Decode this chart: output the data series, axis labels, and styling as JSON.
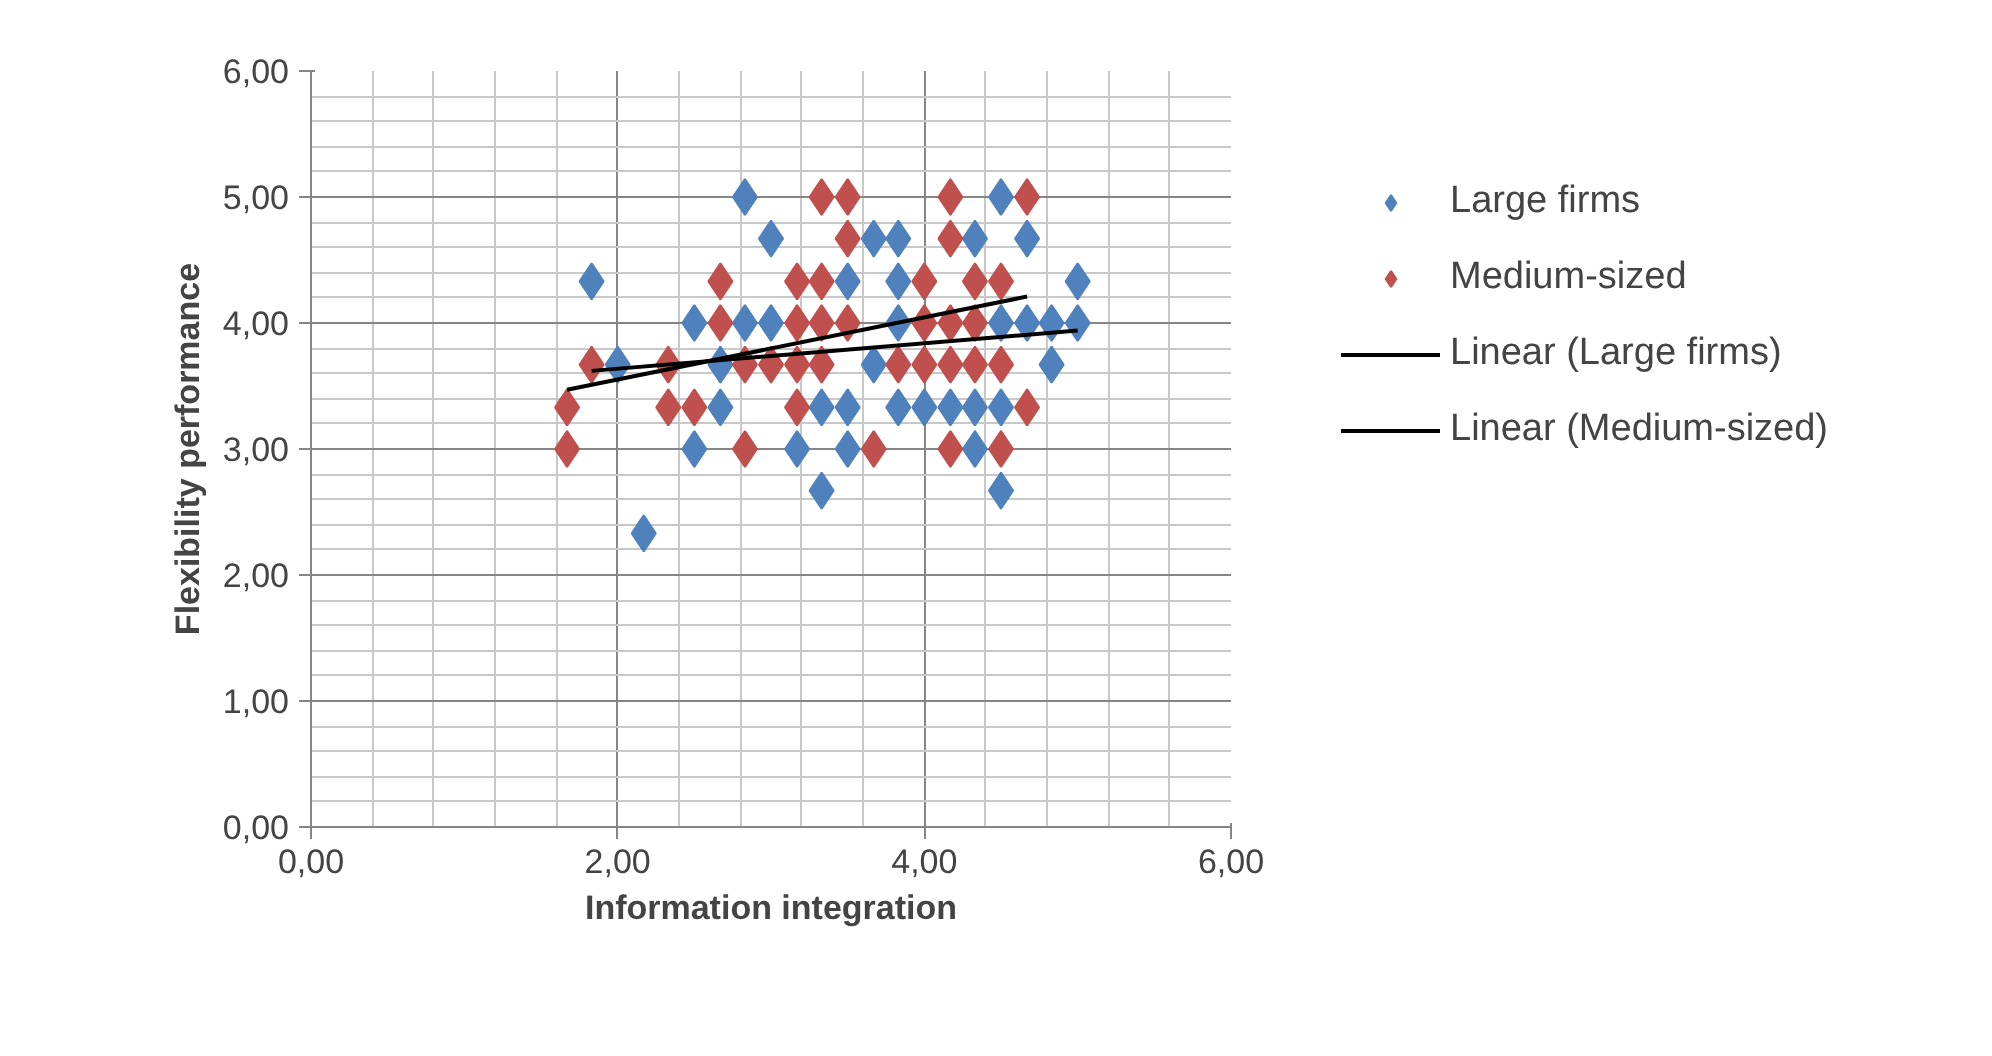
{
  "chart_data": {
    "type": "scatter",
    "xlabel": "Information integration",
    "ylabel": "Flexibility performance",
    "xlim": [
      0,
      6
    ],
    "ylim": [
      0,
      6
    ],
    "xticks": [
      {
        "value": 0,
        "label": "0,00"
      },
      {
        "value": 2,
        "label": "2,00"
      },
      {
        "value": 4,
        "label": "4,00"
      },
      {
        "value": 6,
        "label": "6,00"
      }
    ],
    "yticks": [
      {
        "value": 0,
        "label": "0,00"
      },
      {
        "value": 1,
        "label": "1,00"
      },
      {
        "value": 2,
        "label": "2,00"
      },
      {
        "value": 3,
        "label": "3,00"
      },
      {
        "value": 4,
        "label": "4,00"
      },
      {
        "value": 5,
        "label": "5,00"
      },
      {
        "value": 6,
        "label": "6,00"
      }
    ],
    "grid": true,
    "legend": "right",
    "marker": "diamond",
    "series": [
      {
        "name": "Large firms",
        "color": "#4f81bd",
        "x": [
          2.83,
          1.83,
          3.0,
          4.5,
          3.67,
          3.83,
          4.33,
          4.67,
          3.5,
          3.83,
          5.0,
          2.5,
          2.83,
          3.0,
          3.83,
          4.5,
          4.67,
          4.83,
          5.0,
          2.0,
          2.67,
          3.67,
          4.83,
          2.67,
          3.33,
          3.5,
          3.83,
          4.0,
          4.17,
          4.33,
          4.5,
          2.5,
          3.17,
          3.5,
          4.33,
          3.33,
          4.5,
          2.17
        ],
        "values": [
          5.0,
          4.33,
          4.67,
          5.0,
          4.67,
          4.67,
          4.67,
          4.67,
          4.33,
          4.33,
          4.33,
          4.0,
          4.0,
          4.0,
          4.0,
          4.0,
          4.0,
          4.0,
          4.0,
          3.67,
          3.67,
          3.67,
          3.67,
          3.33,
          3.33,
          3.33,
          3.33,
          3.33,
          3.33,
          3.33,
          3.33,
          3.0,
          3.0,
          3.0,
          3.0,
          2.67,
          2.67,
          2.33
        ]
      },
      {
        "name": "Medium-sized",
        "color": "#c0504d",
        "x": [
          3.33,
          3.5,
          4.17,
          4.67,
          3.5,
          4.17,
          2.67,
          3.17,
          3.33,
          4.0,
          4.33,
          4.5,
          2.67,
          3.17,
          3.33,
          3.5,
          4.0,
          4.17,
          4.33,
          1.83,
          2.33,
          2.83,
          3.0,
          3.17,
          3.33,
          3.83,
          4.0,
          4.17,
          4.33,
          4.5,
          1.67,
          2.33,
          2.5,
          3.17,
          4.67,
          1.67,
          2.83,
          3.67,
          4.17,
          4.5
        ],
        "values": [
          5.0,
          5.0,
          5.0,
          5.0,
          4.67,
          4.67,
          4.33,
          4.33,
          4.33,
          4.33,
          4.33,
          4.33,
          4.0,
          4.0,
          4.0,
          4.0,
          4.0,
          4.0,
          4.0,
          3.67,
          3.67,
          3.67,
          3.67,
          3.67,
          3.67,
          3.67,
          3.67,
          3.67,
          3.67,
          3.67,
          3.33,
          3.33,
          3.33,
          3.33,
          3.33,
          3.0,
          3.0,
          3.0,
          3.0,
          3.0
        ]
      },
      {
        "name": "Linear (Large firms)",
        "type": "line",
        "marker": "none",
        "line_style": "solid",
        "color": "#000000",
        "x": [
          1.83,
          5.0
        ],
        "values": [
          3.62,
          3.94
        ]
      },
      {
        "name": "Linear (Medium-sized)",
        "type": "line",
        "marker": "none",
        "line_style": "solid",
        "color": "#000000",
        "x": [
          1.67,
          4.67
        ],
        "values": [
          3.47,
          4.21
        ]
      }
    ]
  }
}
